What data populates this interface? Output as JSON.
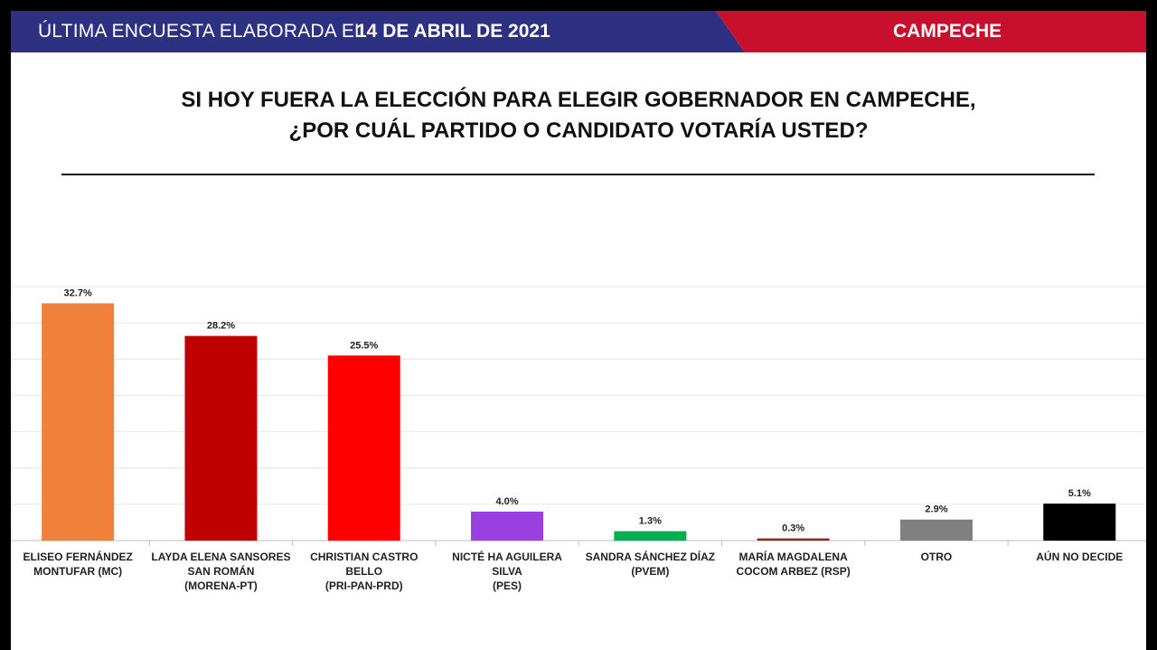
{
  "header": {
    "left_text": "ÚLTIMA ENCUESTA ELABORADA EL",
    "date": "14 DE ABRIL DE 2021",
    "region": "CAMPECHE"
  },
  "chart_data": {
    "type": "bar",
    "title": [
      "SI HOY FUERA LA ELECCIÓN PARA ELEGIR GOBERNADOR EN CAMPECHE,",
      "¿POR CUÁL PARTIDO O CANDIDATO VOTARÍA USTED?"
    ],
    "categories": [
      "ELISEO FERNÁNDEZ\nMONTUFAR (MC)",
      "LAYDA ELENA SANSORES\nSAN ROMÁN\n(MORENA-PT)",
      "CHRISTIAN CASTRO BELLO\n(PRI-PAN-PRD)",
      "NICTÉ HA AGUILERA SILVA\n(PES)",
      "SANDRA SÁNCHEZ DÍAZ\n(PVEM)",
      "MARÍA MAGDALENA\nCOCOM ARBEZ (RSP)",
      "OTRO",
      "AÚN NO DECIDE"
    ],
    "values": [
      32.7,
      28.2,
      25.5,
      4.0,
      1.3,
      0.3,
      2.9,
      5.1
    ],
    "value_labels": [
      "32.7%",
      "28.2%",
      "25.5%",
      "4.0%",
      "1.3%",
      "0.3%",
      "2.9%",
      "5.1%"
    ],
    "colors": [
      "#f0813a",
      "#c00000",
      "#ff0000",
      "#9b40e0",
      "#00b050",
      "#8b2a1e",
      "#808080",
      "#000000"
    ],
    "ylim": [
      0,
      35
    ],
    "yticks": [
      0,
      5,
      10,
      15,
      20,
      25,
      30,
      35
    ],
    "grid": true
  }
}
